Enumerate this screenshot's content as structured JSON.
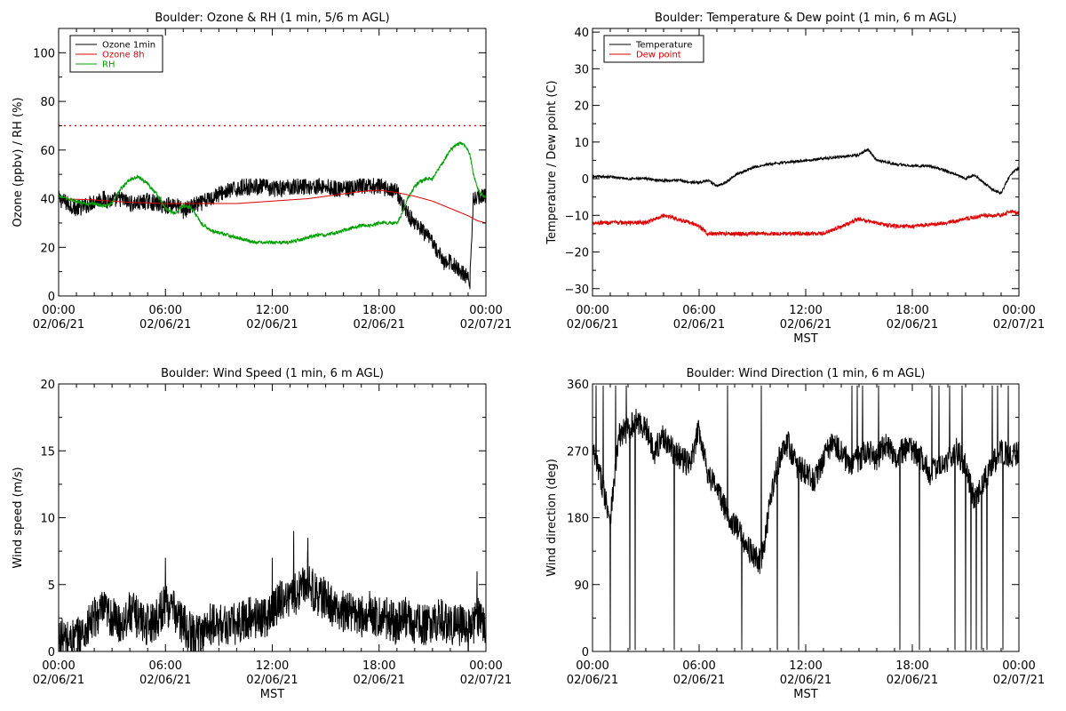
{
  "page": {
    "background": "#ffffff"
  },
  "chart_data": [
    {
      "type": "line",
      "title": "Boulder: Ozone & RH (1 min, 5/6 m AGL)",
      "xlabel": "",
      "ylabel": "Ozone (ppbv) / RH (%)",
      "x_range_hours": [
        0,
        24
      ],
      "x_ticks": [
        {
          "hour": 0,
          "time": "00:00",
          "date": "02/06/21"
        },
        {
          "hour": 6,
          "time": "06:00",
          "date": "02/06/21"
        },
        {
          "hour": 12,
          "time": "12:00",
          "date": "02/06/21"
        },
        {
          "hour": 18,
          "time": "18:00",
          "date": "02/06/21"
        },
        {
          "hour": 24,
          "time": "00:00",
          "date": "02/07/21"
        }
      ],
      "ylim": [
        0,
        110
      ],
      "y_ticks": [
        0,
        20,
        40,
        60,
        80,
        100
      ],
      "y_tick_labels": [
        "0",
        "20",
        "40",
        "60",
        "80",
        "100"
      ],
      "legend": {
        "placement": "top-left",
        "entries": [
          {
            "label": "Ozone 1min",
            "color": "#000000"
          },
          {
            "label": "Ozone 8h",
            "color": "#dd0000"
          },
          {
            "label": "RH",
            "color": "#00a000"
          }
        ]
      },
      "hlines": [
        {
          "y": 70,
          "color": "#dd0000",
          "style": "dotted"
        }
      ],
      "series": [
        {
          "name": "Ozone 1min",
          "color": "#000000",
          "noise": 3.5,
          "x": [
            0,
            0.5,
            1,
            1.5,
            2,
            2.5,
            3,
            3.5,
            4,
            4.5,
            5,
            5.5,
            6,
            6.5,
            7,
            7.5,
            8,
            8.5,
            9,
            9.5,
            10,
            10.5,
            11,
            11.5,
            12,
            12.5,
            13,
            13.5,
            14,
            14.5,
            15,
            15.5,
            16,
            16.5,
            17,
            17.5,
            18,
            18.5,
            19,
            19.3,
            19.6,
            20,
            20.3,
            20.6,
            21,
            21.3,
            21.6,
            22,
            22.3,
            22.6,
            22.9,
            23.1,
            23.3,
            23.6,
            24
          ],
          "y": [
            40,
            38,
            36,
            37,
            39,
            40,
            39,
            40,
            38,
            38,
            39,
            38,
            37,
            38,
            35,
            37,
            38,
            40,
            42,
            43,
            44,
            45,
            45,
            45,
            44,
            44,
            45,
            45,
            45,
            45,
            45,
            44,
            44,
            44,
            45,
            45,
            45,
            44,
            43,
            38,
            34,
            30,
            28,
            25,
            22,
            18,
            14,
            14,
            12,
            10,
            8,
            6,
            40,
            41,
            41
          ]
        },
        {
          "name": "Ozone 8h",
          "color": "#dd0000",
          "noise": 0,
          "x": [
            0,
            2,
            4,
            6,
            8,
            10,
            12,
            14,
            16,
            17,
            18,
            19,
            20,
            21,
            22,
            23,
            23.5,
            24
          ],
          "y": [
            40,
            39.5,
            38.5,
            38,
            38,
            38,
            39,
            40,
            42,
            43,
            43.5,
            42.5,
            41,
            39,
            36,
            33,
            31,
            30
          ]
        },
        {
          "name": "RH",
          "color": "#00a000",
          "noise": 0.7,
          "x": [
            0,
            0.5,
            1,
            1.5,
            2,
            2.5,
            3,
            3.5,
            4,
            4.5,
            5,
            5.5,
            6,
            6.5,
            7,
            7.5,
            8,
            8.5,
            9,
            9.5,
            10,
            10.5,
            11,
            11.5,
            12,
            12.5,
            13,
            13.5,
            14,
            14.5,
            15,
            15.5,
            16,
            16.5,
            17,
            17.5,
            18,
            18.5,
            19,
            19.3,
            19.6,
            20,
            20.3,
            20.6,
            21,
            21.3,
            21.6,
            22,
            22.3,
            22.6,
            22.9,
            23.1,
            23.3,
            23.6,
            24
          ],
          "y": [
            41,
            40,
            39,
            38,
            38,
            37,
            38,
            44,
            48,
            49,
            46,
            42,
            36,
            34,
            37,
            36,
            30,
            27,
            26,
            25,
            24,
            23,
            22,
            22,
            22,
            22,
            22,
            23,
            24,
            25,
            25,
            26,
            27,
            28,
            29,
            29,
            30,
            30,
            30,
            34,
            40,
            45,
            47,
            48,
            48,
            52,
            55,
            60,
            62,
            63,
            61,
            58,
            50,
            43,
            40
          ]
        }
      ]
    },
    {
      "type": "line",
      "title": "Boulder: Temperature & Dew point (1 min, 6 m AGL)",
      "xlabel": "MST",
      "ylabel": "Temperature / Dew point (C)",
      "x_range_hours": [
        0,
        24
      ],
      "x_ticks": [
        {
          "hour": 0,
          "time": "00:00",
          "date": "02/06/21"
        },
        {
          "hour": 6,
          "time": "06:00",
          "date": "02/06/21"
        },
        {
          "hour": 12,
          "time": "12:00",
          "date": "02/06/21"
        },
        {
          "hour": 18,
          "time": "18:00",
          "date": "02/06/21"
        },
        {
          "hour": 24,
          "time": "00:00",
          "date": "02/07/21"
        }
      ],
      "ylim": [
        -32,
        41
      ],
      "y_ticks": [
        -30,
        -20,
        -10,
        0,
        10,
        20,
        30,
        40
      ],
      "y_tick_labels": [
        "−30",
        "−20",
        "−10",
        "0",
        "10",
        "20",
        "30",
        "40"
      ],
      "legend": {
        "placement": "top-left",
        "entries": [
          {
            "label": "Temperature",
            "color": "#000000"
          },
          {
            "label": "Dew point",
            "color": "#dd0000"
          }
        ]
      },
      "series": [
        {
          "name": "Temperature",
          "color": "#000000",
          "noise": 0.35,
          "x": [
            0,
            1,
            2,
            3,
            4,
            5,
            5.5,
            6,
            6.5,
            7,
            7.5,
            8,
            8.5,
            9,
            10,
            11,
            12,
            13,
            14,
            15,
            15.5,
            16,
            17,
            18,
            19,
            20,
            20.5,
            21,
            21.5,
            22,
            22.5,
            23,
            23.5,
            24
          ],
          "y": [
            0.5,
            0.5,
            0,
            0,
            -0.5,
            -0.5,
            -1,
            -1,
            -0.5,
            -2,
            -1,
            1,
            2,
            3,
            4,
            4.5,
            5,
            5.5,
            6,
            6.5,
            8,
            5,
            4,
            3.5,
            3.5,
            2,
            1,
            0,
            1,
            -1,
            -3,
            -4,
            1,
            3
          ]
        },
        {
          "name": "Dew point",
          "color": "#dd0000",
          "noise": 0.55,
          "x": [
            0,
            1,
            2,
            3,
            4,
            4.5,
            5,
            5.5,
            6,
            6.5,
            7,
            8,
            9,
            10,
            11,
            12,
            13,
            14,
            14.5,
            15,
            16,
            17,
            18,
            19,
            20,
            21,
            22,
            23,
            23.5,
            24
          ],
          "y": [
            -12,
            -12,
            -12,
            -12,
            -10,
            -10.5,
            -11.5,
            -12,
            -13,
            -15,
            -15,
            -15,
            -15,
            -15,
            -15,
            -15,
            -15,
            -13,
            -12,
            -11,
            -12,
            -13,
            -13,
            -12.5,
            -12,
            -11,
            -10,
            -10,
            -9,
            -9.5
          ]
        }
      ]
    },
    {
      "type": "line",
      "title": "Boulder: Wind Speed (1 min, 6 m AGL)",
      "xlabel": "MST",
      "ylabel": "Wind speed (m/s)",
      "x_range_hours": [
        0,
        24
      ],
      "x_ticks": [
        {
          "hour": 0,
          "time": "00:00",
          "date": "02/06/21"
        },
        {
          "hour": 6,
          "time": "06:00",
          "date": "02/06/21"
        },
        {
          "hour": 12,
          "time": "12:00",
          "date": "02/06/21"
        },
        {
          "hour": 18,
          "time": "18:00",
          "date": "02/06/21"
        },
        {
          "hour": 24,
          "time": "00:00",
          "date": "02/07/21"
        }
      ],
      "ylim": [
        0,
        20
      ],
      "y_ticks": [
        0,
        5,
        10,
        15,
        20
      ],
      "y_tick_labels": [
        "0",
        "5",
        "10",
        "15",
        "20"
      ],
      "series": [
        {
          "name": "",
          "color": "#000000",
          "noise": 1.6,
          "x": [
            0,
            0.5,
            1,
            1.5,
            2,
            2.5,
            3,
            3.5,
            4,
            4.5,
            5,
            5.5,
            6,
            6.5,
            7,
            7.5,
            8,
            8.5,
            9,
            9.5,
            10,
            10.5,
            11,
            11.5,
            12,
            12.5,
            13,
            13.5,
            14,
            14.5,
            15,
            15.5,
            16,
            16.5,
            17,
            17.5,
            18,
            18.5,
            19,
            19.5,
            20,
            20.5,
            21,
            21.5,
            22,
            22.5,
            23,
            23.5,
            24
          ],
          "y": [
            1,
            0.8,
            1,
            1.5,
            2.5,
            3,
            2.5,
            2,
            3,
            2.5,
            2,
            2.5,
            3.5,
            3,
            2,
            1.2,
            1.5,
            2,
            2,
            2,
            2,
            2.5,
            2.5,
            2.5,
            3,
            4,
            4,
            4.5,
            5.5,
            4,
            4,
            3,
            3,
            3,
            2.5,
            3,
            2.5,
            2.5,
            2,
            2.5,
            2,
            2,
            2,
            2.5,
            2,
            2,
            1.5,
            2.5,
            2
          ],
          "spikes": [
            {
              "x": 6,
              "y": 7
            },
            {
              "x": 13.2,
              "y": 9
            },
            {
              "x": 14,
              "y": 8.5
            },
            {
              "x": 12,
              "y": 7
            },
            {
              "x": 23.5,
              "y": 6
            }
          ]
        }
      ]
    },
    {
      "type": "line",
      "title": "Boulder: Wind Direction (1 min, 6 m AGL)",
      "xlabel": "MST",
      "ylabel": "Wind direction (deg)",
      "x_range_hours": [
        0,
        24
      ],
      "x_ticks": [
        {
          "hour": 0,
          "time": "00:00",
          "date": "02/06/21"
        },
        {
          "hour": 6,
          "time": "06:00",
          "date": "02/06/21"
        },
        {
          "hour": 12,
          "time": "12:00",
          "date": "02/06/21"
        },
        {
          "hour": 18,
          "time": "18:00",
          "date": "02/06/21"
        },
        {
          "hour": 24,
          "time": "00:00",
          "date": "02/07/21"
        }
      ],
      "ylim": [
        0,
        360
      ],
      "y_ticks": [
        0,
        90,
        180,
        270,
        360
      ],
      "y_tick_labels": [
        "0",
        "90",
        "180",
        "270",
        "360"
      ],
      "series": [
        {
          "name": "",
          "color": "#000000",
          "noise": 18,
          "x": [
            0,
            0.5,
            1,
            1.5,
            2,
            2.5,
            3,
            3.5,
            4,
            4.5,
            5,
            5.5,
            6,
            6.5,
            7,
            7.5,
            8,
            8.5,
            9,
            9.5,
            10,
            10.5,
            11,
            11.5,
            12,
            12.5,
            13,
            13.5,
            14,
            14.5,
            15,
            15.5,
            16,
            16.5,
            17,
            17.5,
            18,
            18.5,
            19,
            19.5,
            20,
            20.5,
            21,
            21.5,
            22,
            22.5,
            23,
            23.5,
            24
          ],
          "y": [
            270,
            230,
            180,
            290,
            300,
            310,
            300,
            270,
            290,
            270,
            260,
            250,
            300,
            240,
            220,
            190,
            170,
            150,
            130,
            120,
            200,
            260,
            280,
            250,
            240,
            230,
            260,
            280,
            270,
            250,
            260,
            270,
            260,
            280,
            260,
            270,
            270,
            260,
            240,
            250,
            260,
            270,
            250,
            200,
            230,
            250,
            270,
            260,
            270
          ],
          "dropout_hours": [
            0.2,
            0.6,
            1.0,
            1.3,
            1.9,
            2.1,
            2.4,
            4.6,
            7.6,
            8.4,
            9.5,
            10.4,
            11.6,
            14.6,
            14.9,
            15.2,
            16.1,
            17.3,
            18.4,
            19.1,
            19.5,
            20.1,
            20.4,
            20.8,
            21.0,
            21.3,
            21.6,
            21.9,
            22.2,
            22.5,
            22.8,
            23.1,
            23.4
          ]
        }
      ]
    }
  ]
}
